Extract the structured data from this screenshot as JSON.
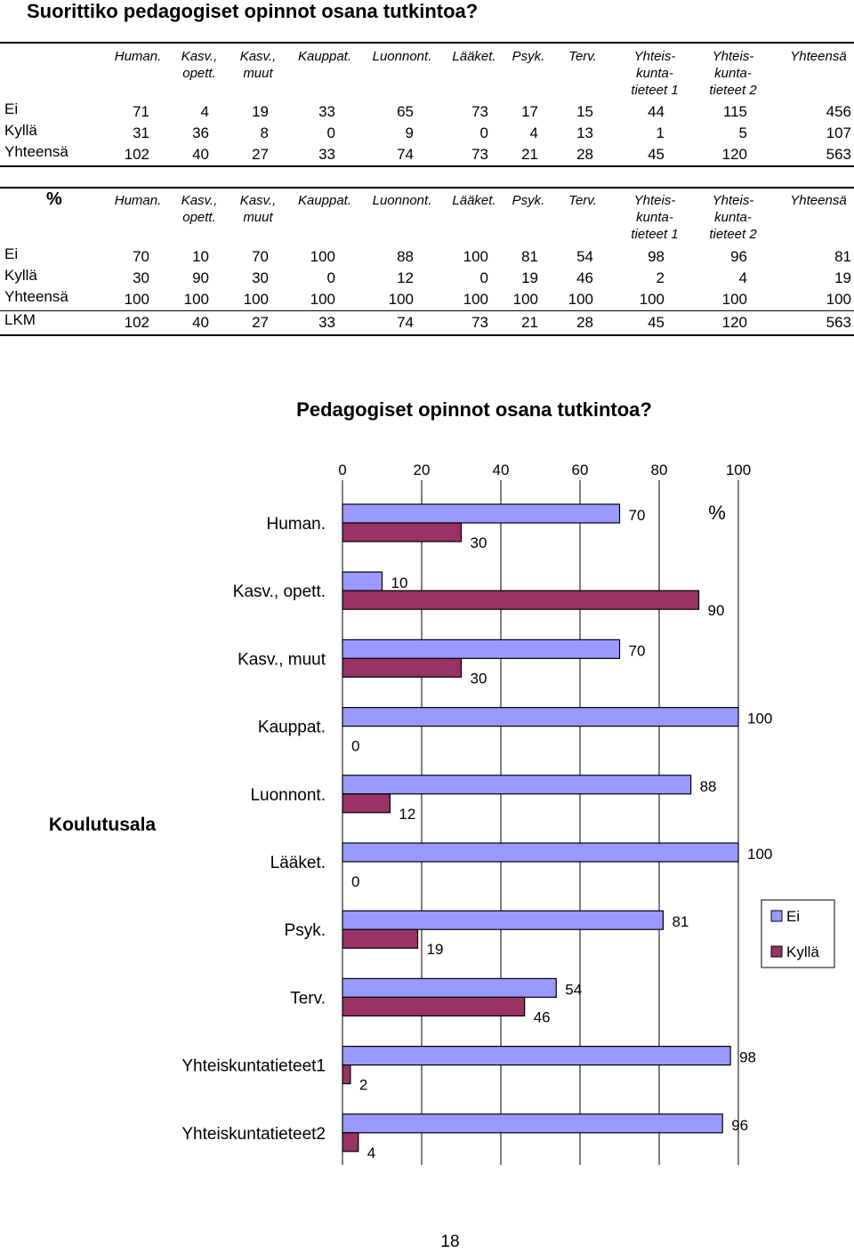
{
  "title": "Suorittiko pedagogiset opinnot osana tutkintoa?",
  "columns": [
    "Human.",
    "Kasv.,\nopett.",
    "Kasv.,\nmuut",
    "Kauppat.",
    "Luonnont.",
    "Lääket.",
    "Psyk.",
    "Terv.",
    "Yhteis-\nkunta-\ntieteet 1",
    "Yhteis-\nkunta-\ntieteet 2",
    "Yhteensä"
  ],
  "table1": {
    "rows": [
      {
        "label": "Ei",
        "values": [
          "71",
          "4",
          "19",
          "33",
          "65",
          "73",
          "17",
          "15",
          "44",
          "115",
          "456"
        ]
      },
      {
        "label": "Kyllä",
        "values": [
          "31",
          "36",
          "8",
          "0",
          "9",
          "0",
          "4",
          "13",
          "1",
          "5",
          "107"
        ]
      },
      {
        "label": "Yhteensä",
        "values": [
          "102",
          "40",
          "27",
          "33",
          "74",
          "73",
          "21",
          "28",
          "45",
          "120",
          "563"
        ]
      }
    ]
  },
  "table2": {
    "corner": "%",
    "rows": [
      {
        "label": "Ei",
        "values": [
          "70",
          "10",
          "70",
          "100",
          "88",
          "100",
          "81",
          "54",
          "98",
          "96",
          "81"
        ]
      },
      {
        "label": "Kyllä",
        "values": [
          "30",
          "90",
          "30",
          "0",
          "12",
          "0",
          "19",
          "46",
          "2",
          "4",
          "19"
        ]
      },
      {
        "label": "Yhteensä",
        "values": [
          "100",
          "100",
          "100",
          "100",
          "100",
          "100",
          "100",
          "100",
          "100",
          "100",
          "100"
        ]
      },
      {
        "label": "LKM",
        "values": [
          "102",
          "40",
          "27",
          "33",
          "74",
          "73",
          "21",
          "28",
          "45",
          "120",
          "563"
        ]
      }
    ]
  },
  "chart_data": {
    "type": "bar",
    "orientation": "horizontal",
    "title": "Pedagogiset opinnot osana tutkintoa?",
    "ylabel": "Koulutusala",
    "unit_label": "%",
    "categories": [
      "Human.",
      "Kasv., opett.",
      "Kasv., muut",
      "Kauppat.",
      "Luonnont.",
      "Lääket.",
      "Psyk.",
      "Terv.",
      "Yhteiskuntatieteet1",
      "Yhteiskuntatieteet2"
    ],
    "series": [
      {
        "name": "Ei",
        "values": [
          70,
          10,
          70,
          100,
          88,
          100,
          81,
          54,
          98,
          96
        ],
        "color": "#9999ff"
      },
      {
        "name": "Kyllä",
        "values": [
          30,
          90,
          30,
          0,
          12,
          0,
          19,
          46,
          2,
          4
        ],
        "color": "#993366"
      }
    ],
    "xlim": [
      0,
      100
    ],
    "xticks": [
      0,
      20,
      40,
      60,
      80,
      100
    ],
    "grid": true,
    "legend": "right"
  },
  "page_number": "18"
}
